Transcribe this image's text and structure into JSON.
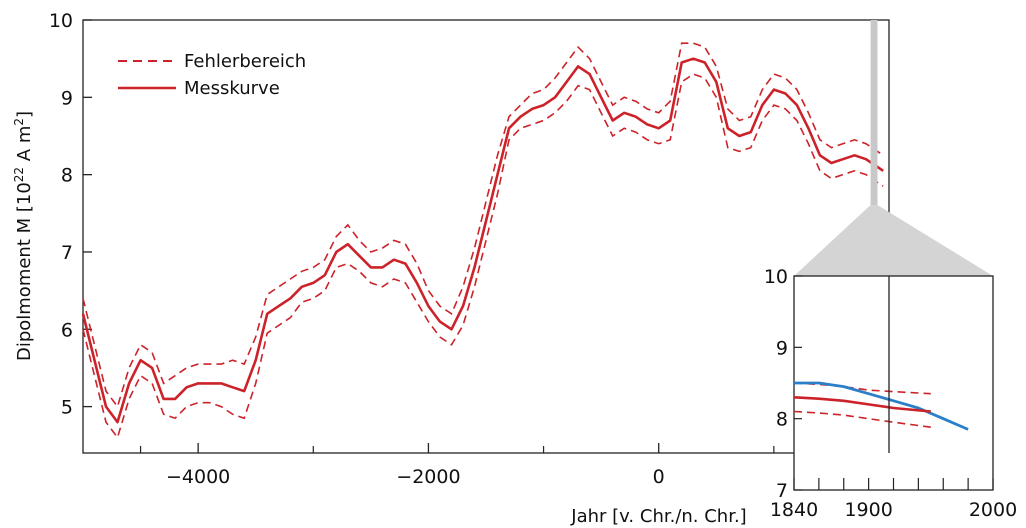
{
  "chart_data": [
    {
      "type": "line",
      "title": "",
      "xlabel": "Jahr  [v. Chr./n. Chr.]",
      "ylabel_main": "Dipolmoment M  [10",
      "ylabel_exp": "22",
      "ylabel_tail": " A m",
      "ylabel_sq": "2",
      "ylabel_close": "]",
      "xlim": [
        -5000,
        2000
      ],
      "ylim": [
        4.4,
        10
      ],
      "x_ticks": [
        -4000,
        -2000,
        0
      ],
      "x_tick_labels": [
        "−4000",
        "−2000",
        "0"
      ],
      "y_ticks": [
        5,
        6,
        7,
        8,
        9,
        10
      ],
      "y_tick_labels": [
        "5",
        "6",
        "7",
        "8",
        "9",
        "10"
      ],
      "legend": {
        "placement": "top-left",
        "entries": [
          {
            "label": "Fehlerbereich",
            "style": "dashed",
            "color": "#cc2229"
          },
          {
            "label": "Messkurve",
            "style": "solid",
            "color": "#cc2229"
          }
        ]
      },
      "highlight_range": [
        1840,
        1900
      ],
      "series": [
        {
          "name": "Messkurve",
          "color": "#cc2229",
          "x": [
            -5000,
            -4900,
            -4800,
            -4700,
            -4600,
            -4500,
            -4400,
            -4300,
            -4200,
            -4100,
            -4000,
            -3900,
            -3800,
            -3700,
            -3600,
            -3500,
            -3400,
            -3300,
            -3200,
            -3100,
            -3000,
            -2900,
            -2800,
            -2700,
            -2600,
            -2500,
            -2400,
            -2300,
            -2200,
            -2100,
            -2000,
            -1900,
            -1800,
            -1700,
            -1600,
            -1500,
            -1400,
            -1300,
            -1200,
            -1100,
            -1000,
            -900,
            -800,
            -700,
            -600,
            -500,
            -400,
            -300,
            -200,
            -100,
            0,
            100,
            200,
            300,
            400,
            500,
            600,
            700,
            800,
            900,
            1000,
            1100,
            1200,
            1300,
            1400,
            1500,
            1600,
            1700,
            1800,
            1900,
            1950
          ],
          "y": [
            6.2,
            5.6,
            5.0,
            4.8,
            5.3,
            5.6,
            5.5,
            5.1,
            5.1,
            5.25,
            5.3,
            5.3,
            5.3,
            5.25,
            5.2,
            5.6,
            6.2,
            6.3,
            6.4,
            6.55,
            6.6,
            6.7,
            7.0,
            7.1,
            6.95,
            6.8,
            6.8,
            6.9,
            6.85,
            6.6,
            6.3,
            6.1,
            6.0,
            6.3,
            6.8,
            7.4,
            8.0,
            8.6,
            8.75,
            8.85,
            8.9,
            9.0,
            9.2,
            9.4,
            9.3,
            9.0,
            8.7,
            8.8,
            8.75,
            8.65,
            8.6,
            8.7,
            9.45,
            9.5,
            9.45,
            9.2,
            8.6,
            8.5,
            8.55,
            8.9,
            9.1,
            9.05,
            8.9,
            8.6,
            8.25,
            8.15,
            8.2,
            8.25,
            8.2,
            8.1,
            8.05
          ]
        },
        {
          "name": "Fehlerbereich",
          "color": "#cc2229",
          "x": [
            -5000,
            -4900,
            -4800,
            -4700,
            -4600,
            -4500,
            -4400,
            -4300,
            -4200,
            -4100,
            -4000,
            -3900,
            -3800,
            -3700,
            -3600,
            -3500,
            -3400,
            -3300,
            -3200,
            -3100,
            -3000,
            -2900,
            -2800,
            -2700,
            -2600,
            -2500,
            -2400,
            -2300,
            -2200,
            -2100,
            -2000,
            -1900,
            -1800,
            -1700,
            -1600,
            -1500,
            -1400,
            -1300,
            -1200,
            -1100,
            -1000,
            -900,
            -800,
            -700,
            -600,
            -500,
            -400,
            -300,
            -200,
            -100,
            0,
            100,
            200,
            300,
            400,
            500,
            600,
            700,
            800,
            900,
            1000,
            1100,
            1200,
            1300,
            1400,
            1500,
            1600,
            1700,
            1800,
            1900,
            1950
          ],
          "y_upper": [
            6.4,
            5.8,
            5.2,
            5.0,
            5.5,
            5.8,
            5.7,
            5.3,
            5.4,
            5.5,
            5.55,
            5.55,
            5.55,
            5.6,
            5.55,
            5.9,
            6.45,
            6.55,
            6.65,
            6.75,
            6.8,
            6.9,
            7.2,
            7.35,
            7.15,
            7.0,
            7.05,
            7.15,
            7.1,
            6.85,
            6.5,
            6.3,
            6.2,
            6.55,
            7.05,
            7.65,
            8.25,
            8.75,
            8.9,
            9.05,
            9.1,
            9.25,
            9.45,
            9.65,
            9.5,
            9.2,
            8.9,
            9.0,
            8.95,
            8.85,
            8.8,
            8.95,
            9.7,
            9.7,
            9.65,
            9.4,
            8.85,
            8.7,
            8.75,
            9.1,
            9.3,
            9.25,
            9.1,
            8.8,
            8.45,
            8.35,
            8.4,
            8.45,
            8.4,
            8.3,
            8.25
          ],
          "y_lower": [
            6.0,
            5.4,
            4.8,
            4.6,
            5.1,
            5.4,
            5.3,
            4.9,
            4.85,
            5.0,
            5.05,
            5.05,
            5.0,
            4.9,
            4.85,
            5.3,
            5.95,
            6.05,
            6.15,
            6.35,
            6.4,
            6.5,
            6.8,
            6.85,
            6.75,
            6.6,
            6.55,
            6.65,
            6.6,
            6.35,
            6.1,
            5.9,
            5.8,
            6.05,
            6.55,
            7.15,
            7.75,
            8.45,
            8.6,
            8.65,
            8.7,
            8.8,
            8.95,
            9.15,
            9.1,
            8.8,
            8.5,
            8.6,
            8.55,
            8.45,
            8.4,
            8.45,
            9.2,
            9.3,
            9.25,
            9.0,
            8.35,
            8.3,
            8.35,
            8.7,
            8.9,
            8.85,
            8.7,
            8.4,
            8.05,
            7.95,
            8.0,
            8.05,
            8.0,
            7.9,
            7.85
          ]
        }
      ]
    },
    {
      "type": "line",
      "title": "",
      "xlim": [
        1840,
        2000
      ],
      "ylim": [
        7,
        10
      ],
      "x_ticks": [
        1840,
        1900,
        2000
      ],
      "x_tick_labels": [
        "1840",
        "1900",
        "2000"
      ],
      "x_minor_ticks": [
        1860,
        1880,
        1920,
        1940,
        1960,
        1980
      ],
      "y_ticks": [
        7,
        8,
        9,
        10
      ],
      "y_tick_labels": [
        "7",
        "8",
        "9",
        "10"
      ],
      "series": [
        {
          "name": "",
          "color": "#2a7fc8",
          "x": [
            1840,
            1860,
            1880,
            1900,
            1920,
            1940,
            1960,
            1980
          ],
          "y": [
            8.5,
            8.5,
            8.45,
            8.35,
            8.25,
            8.15,
            8.0,
            7.85
          ]
        },
        {
          "name": "Messkurve",
          "color": "#cc2229",
          "x": [
            1840,
            1860,
            1880,
            1900,
            1920,
            1950
          ],
          "y": [
            8.3,
            8.28,
            8.25,
            8.2,
            8.15,
            8.1
          ]
        },
        {
          "name": "Fehlerbereich",
          "color": "#cc2229",
          "x": [
            1840,
            1860,
            1880,
            1900,
            1920,
            1950
          ],
          "y_upper": [
            8.5,
            8.48,
            8.45,
            8.4,
            8.38,
            8.35
          ],
          "y_lower": [
            8.1,
            8.08,
            8.05,
            8.0,
            7.95,
            7.88
          ]
        }
      ]
    }
  ]
}
